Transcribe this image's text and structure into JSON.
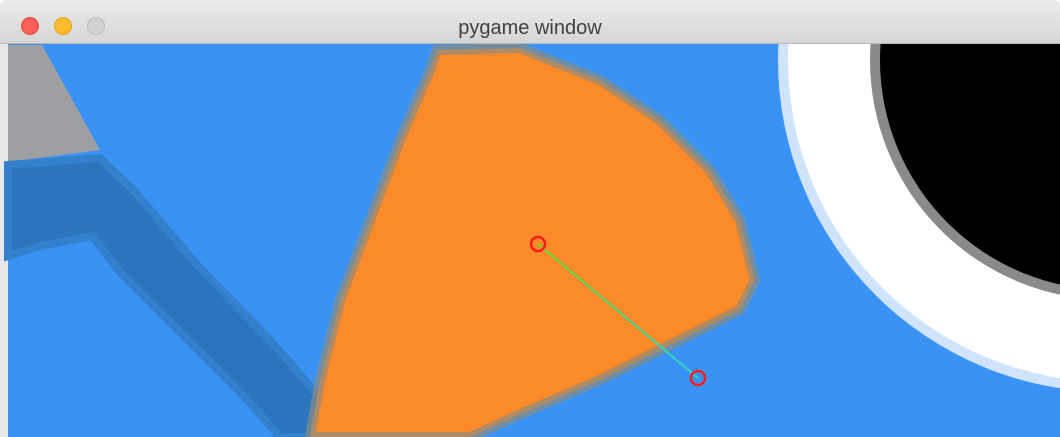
{
  "window": {
    "title": "pygame window"
  }
}
